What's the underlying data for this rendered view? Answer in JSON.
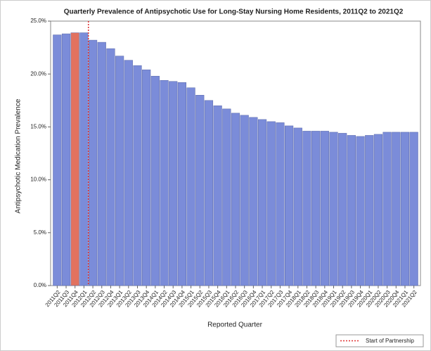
{
  "chart_data": {
    "type": "bar",
    "title": "Quarterly Prevalence of Antipsychotic Use for Long-Stay Nursing Home Residents, 2011Q2 to 2021Q2",
    "x_label": "Reported Quarter",
    "y_label": "Antipsychotic Medication Prevalence",
    "categories": [
      "2011Q2",
      "2011Q3",
      "2011Q4",
      "2012Q1",
      "2012Q2",
      "2012Q3",
      "2012Q4",
      "2013Q1",
      "2013Q2",
      "2013Q3",
      "2013Q4",
      "2014Q1",
      "2014Q2",
      "2014Q3",
      "2014Q4",
      "2015Q1",
      "2015Q2",
      "2015Q3",
      "2015Q4",
      "2016Q1",
      "2016Q2",
      "2016Q3",
      "2016Q4",
      "2017Q1",
      "2017Q2",
      "2017Q3",
      "2017Q4",
      "2018Q1",
      "2018Q2",
      "2018Q3",
      "2018Q4",
      "2019Q1",
      "2019Q2",
      "2019Q3",
      "2019Q4",
      "2020Q1",
      "2020Q2",
      "2020Q3",
      "2020Q4",
      "2021Q1",
      "2021Q2"
    ],
    "values": [
      23.7,
      23.8,
      23.9,
      23.9,
      23.2,
      23.0,
      22.4,
      21.7,
      21.3,
      20.8,
      20.4,
      19.8,
      19.4,
      19.3,
      19.2,
      18.7,
      18.0,
      17.5,
      17.0,
      16.7,
      16.3,
      16.1,
      15.9,
      15.7,
      15.5,
      15.4,
      15.1,
      14.9,
      14.6,
      14.6,
      14.6,
      14.5,
      14.4,
      14.2,
      14.1,
      14.2,
      14.3,
      14.5,
      14.5,
      14.5,
      14.5
    ],
    "color": "#7b8cd9",
    "highlight_color": "#e2725f",
    "highlight_categories": [
      "2011Q4"
    ],
    "ylim": [
      0,
      25
    ],
    "yticks": [
      {
        "value": 0,
        "label": "0.0%"
      },
      {
        "value": 5,
        "label": "5.0%"
      },
      {
        "value": 10,
        "label": "10.0%"
      },
      {
        "value": 15,
        "label": "15.0%"
      },
      {
        "value": 20,
        "label": "20.0%"
      },
      {
        "value": 25,
        "label": "25.0%"
      }
    ],
    "reference_line": {
      "label": "Start of Partnership",
      "before_category": "2012Q2",
      "color": "#e03030"
    },
    "legend": "bottom-right"
  }
}
